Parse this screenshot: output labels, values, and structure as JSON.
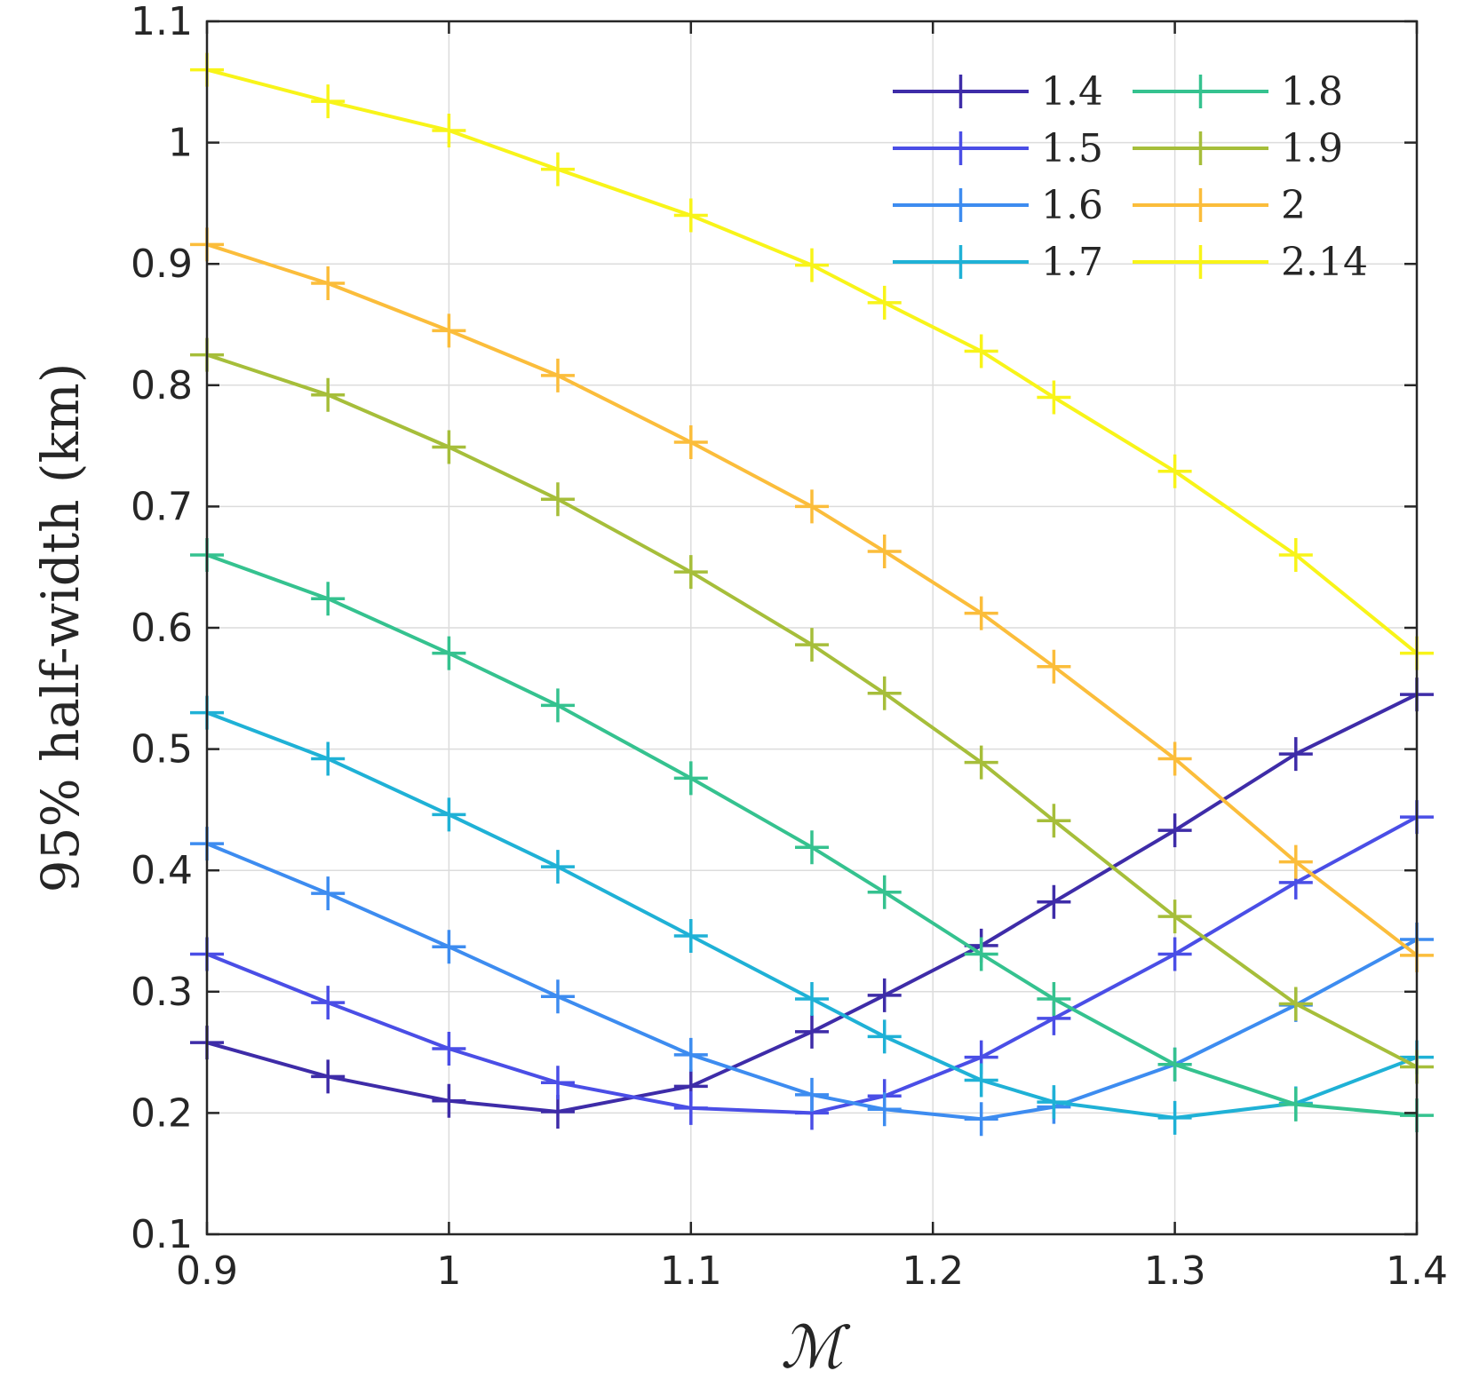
{
  "chart_data": {
    "type": "line",
    "title": "",
    "xlabel": "ℳ",
    "ylabel": "95% half-width (km)",
    "xlim": [
      0.9,
      1.4
    ],
    "ylim": [
      0.1,
      1.1
    ],
    "xticks": [
      0.9,
      1.0,
      1.1,
      1.2,
      1.3,
      1.4
    ],
    "xtick_labels": [
      "0.9",
      "1",
      "1.1",
      "1.2",
      "1.3",
      "1.4"
    ],
    "yticks": [
      0.1,
      0.2,
      0.3,
      0.4,
      0.5,
      0.6,
      0.7,
      0.8,
      0.9,
      1.0,
      1.1
    ],
    "ytick_labels": [
      "0.1",
      "0.2",
      "0.3",
      "0.4",
      "0.5",
      "0.6",
      "0.7",
      "0.8",
      "0.9",
      "1",
      "1.1"
    ],
    "grid": true,
    "legend_position": "top-right",
    "legend_columns": 2,
    "marker": "+",
    "x": [
      0.9,
      0.95,
      1.0,
      1.045,
      1.1,
      1.15,
      1.18,
      1.22,
      1.25,
      1.3,
      1.35,
      1.4
    ],
    "series": [
      {
        "name": "1.4",
        "color": "#3e2ca8",
        "values": [
          0.258,
          0.23,
          0.21,
          0.201,
          0.222,
          0.267,
          0.297,
          0.338,
          0.374,
          0.433,
          0.496,
          0.545
        ]
      },
      {
        "name": "1.5",
        "color": "#4a4ee6",
        "values": [
          0.331,
          0.291,
          0.253,
          0.225,
          0.204,
          0.2,
          0.214,
          0.246,
          0.278,
          0.331,
          0.39,
          0.444
        ]
      },
      {
        "name": "1.6",
        "color": "#3d8cf0",
        "values": [
          0.422,
          0.381,
          0.337,
          0.296,
          0.248,
          0.215,
          0.203,
          0.195,
          0.205,
          0.24,
          0.289,
          0.343
        ]
      },
      {
        "name": "1.7",
        "color": "#1fb1d6",
        "values": [
          0.53,
          0.492,
          0.446,
          0.403,
          0.346,
          0.294,
          0.263,
          0.227,
          0.209,
          0.196,
          0.208,
          0.246
        ]
      },
      {
        "name": "1.8",
        "color": "#35c28f",
        "values": [
          0.66,
          0.624,
          0.579,
          0.536,
          0.476,
          0.419,
          0.382,
          0.331,
          0.294,
          0.24,
          0.207,
          0.198
        ]
      },
      {
        "name": "1.9",
        "color": "#a6be3a",
        "values": [
          0.825,
          0.792,
          0.749,
          0.706,
          0.646,
          0.586,
          0.546,
          0.489,
          0.441,
          0.362,
          0.29,
          0.238
        ]
      },
      {
        "name": "2",
        "color": "#fbbd3b",
        "values": [
          0.916,
          0.884,
          0.845,
          0.808,
          0.753,
          0.7,
          0.663,
          0.612,
          0.568,
          0.492,
          0.407,
          0.33
        ]
      },
      {
        "name": "2.14",
        "color": "#f8f419",
        "values": [
          1.06,
          1.034,
          1.01,
          0.978,
          0.94,
          0.899,
          0.868,
          0.828,
          0.79,
          0.729,
          0.66,
          0.579
        ]
      }
    ]
  }
}
